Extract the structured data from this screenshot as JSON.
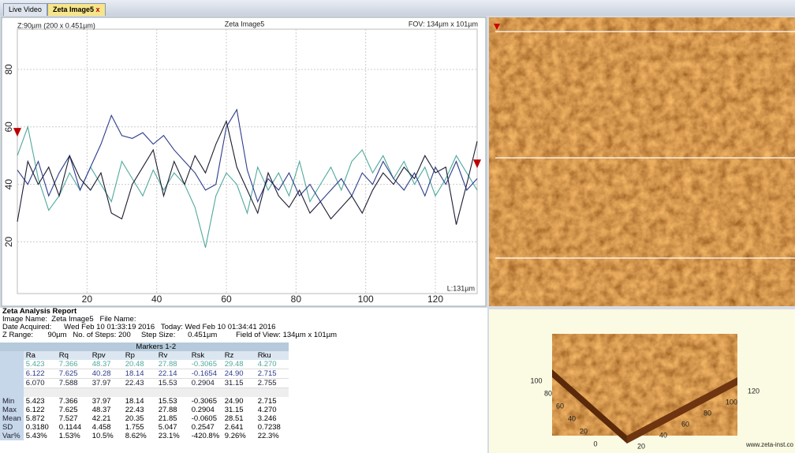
{
  "tabs": [
    "Live Video",
    "Zeta Image5"
  ],
  "chart_data": {
    "type": "line",
    "title": "Zeta Image5",
    "z_label": "Z:90µm (200 x 0.451µm)",
    "fov": "FOV: 134µm x 101µm",
    "length_label": "L:131µm",
    "x": [
      0,
      3,
      6,
      9,
      12,
      15,
      18,
      21,
      24,
      27,
      30,
      33,
      36,
      39,
      42,
      45,
      48,
      51,
      54,
      57,
      60,
      63,
      66,
      69,
      72,
      75,
      78,
      81,
      84,
      87,
      90,
      93,
      96,
      99,
      102,
      105,
      108,
      111,
      114,
      117,
      120,
      123,
      126,
      129,
      132
    ],
    "series": [
      {
        "color": "#4fa99b",
        "values": [
          50,
          60,
          42,
          31,
          36,
          44,
          38,
          46,
          40,
          34,
          48,
          42,
          36,
          45,
          38,
          44,
          40,
          32,
          18,
          36,
          44,
          40,
          30,
          46,
          38,
          44,
          36,
          48,
          34,
          40,
          46,
          38,
          48,
          52,
          44,
          50,
          42,
          48,
          40,
          46,
          36,
          42,
          50,
          44,
          38
        ]
      },
      {
        "color": "#2c3b8c",
        "values": [
          45,
          40,
          48,
          36,
          44,
          50,
          38,
          46,
          54,
          64,
          57,
          56,
          58,
          54,
          57,
          52,
          48,
          44,
          38,
          40,
          60,
          66,
          45,
          34,
          42,
          38,
          44,
          36,
          40,
          34,
          38,
          42,
          36,
          44,
          40,
          48,
          42,
          38,
          44,
          36,
          46,
          40,
          48,
          38,
          42
        ]
      },
      {
        "color": "#1c1c30",
        "values": [
          27,
          48,
          40,
          46,
          36,
          50,
          42,
          38,
          44,
          30,
          28,
          40,
          46,
          52,
          36,
          48,
          40,
          50,
          44,
          54,
          62,
          46,
          38,
          30,
          44,
          36,
          32,
          38,
          30,
          34,
          28,
          32,
          36,
          30,
          38,
          44,
          40,
          46,
          42,
          50,
          44,
          46,
          26,
          40,
          55
        ]
      }
    ],
    "markers": [
      58,
      47
    ],
    "xlim": [
      0,
      132
    ],
    "ylim": [
      2,
      94
    ],
    "xticks": [
      20,
      40,
      60,
      80,
      100,
      120
    ],
    "yticks": [
      20,
      40,
      60,
      80
    ],
    "grid": true
  },
  "report": {
    "title": "Zeta Analysis Report",
    "lines": [
      "Image Name:  Zeta Image5   File Name:",
      "Date Acquired:      Wed Feb 10 01:33:19 2016   Today: Wed Feb 10 01:34:41 2016",
      "Z Range:       90µm   No. of Steps: 200     Step Size:      0.451µm         Field of View: 134µm x 101µm"
    ],
    "table": {
      "group": "Markers 1-2",
      "columns": [
        "Ra",
        "Rq",
        "Rpv",
        "Rp",
        "Rv",
        "Rsk",
        "Rz",
        "Rku"
      ],
      "rows": [
        [
          "5.423",
          "7.366",
          "48.37",
          "20.48",
          "27.88",
          "-0.3065",
          "29.48",
          "4.270"
        ],
        [
          "6.122",
          "7.625",
          "40.28",
          "18.14",
          "22.14",
          "-0.1654",
          "24.90",
          "2.715"
        ],
        [
          "6.070",
          "7.588",
          "37.97",
          "22.43",
          "15.53",
          "0.2904",
          "31.15",
          "2.755"
        ]
      ],
      "stats": [
        {
          "label": "Min",
          "values": [
            "5.423",
            "7.366",
            "37.97",
            "18.14",
            "15.53",
            "-0.3065",
            "24.90",
            "2.715"
          ]
        },
        {
          "label": "Max",
          "values": [
            "6.122",
            "7.625",
            "48.37",
            "22.43",
            "27.88",
            "0.2904",
            "31.15",
            "4.270"
          ]
        },
        {
          "label": "Mean",
          "values": [
            "5.872",
            "7.527",
            "42.21",
            "20.35",
            "21.85",
            "-0.0605",
            "28.51",
            "3.246"
          ]
        },
        {
          "label": "SD",
          "values": [
            "0.3180",
            "0.1144",
            "4.458",
            "1.755",
            "5.047",
            "0.2547",
            "2.641",
            "0.7238"
          ]
        },
        {
          "label": "Var%",
          "values": [
            "5.43%",
            "1.53%",
            "10.5%",
            "8.62%",
            "23.1%",
            "-420.8%",
            "9.26%",
            "22.3%"
          ]
        }
      ]
    }
  },
  "view3d": {
    "left_labels": [
      "100",
      "80",
      "60",
      "40",
      "20",
      "0"
    ],
    "front_labels": [
      "20",
      "40",
      "60",
      "80",
      "100",
      "120"
    ],
    "footer": "www.zeta-inst.co"
  }
}
